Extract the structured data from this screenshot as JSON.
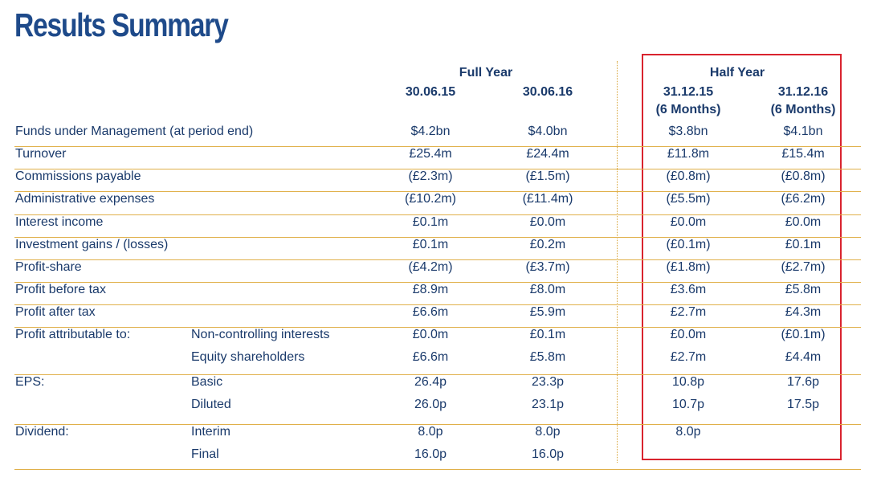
{
  "title": "Results Summary",
  "headers": {
    "full_year": "Full Year",
    "half_year": "Half Year",
    "fy_col1": "30.06.15",
    "fy_col2": "30.06.16",
    "hy_col1": "31.12.15",
    "hy_col2": "31.12.16",
    "hy_col1_sub": "(6 Months)",
    "hy_col2_sub": "(6 Months)"
  },
  "rows": [
    {
      "label": "Funds under Management (at period end)",
      "sub": "",
      "v": [
        "$4.2bn",
        "$4.0bn",
        "$3.8bn",
        "$4.1bn"
      ]
    },
    {
      "label": "Turnover",
      "sub": "",
      "v": [
        "£25.4m",
        "£24.4m",
        "£11.8m",
        "£15.4m"
      ]
    },
    {
      "label": "Commissions payable",
      "sub": "",
      "v": [
        "(£2.3m)",
        "(£1.5m)",
        "(£0.8m)",
        "(£0.8m)"
      ]
    },
    {
      "label": "Administrative expenses",
      "sub": "",
      "v": [
        "(£10.2m)",
        "(£11.4m)",
        "(£5.5m)",
        "(£6.2m)"
      ]
    },
    {
      "label": "Interest income",
      "sub": "",
      "v": [
        "£0.1m",
        "£0.0m",
        "£0.0m",
        "£0.0m"
      ]
    },
    {
      "label": "Investment gains / (losses)",
      "sub": "",
      "v": [
        "£0.1m",
        "£0.2m",
        "(£0.1m)",
        "£0.1m"
      ]
    },
    {
      "label": "Profit-share",
      "sub": "",
      "v": [
        "(£4.2m)",
        "(£3.7m)",
        "(£1.8m)",
        "(£2.7m)"
      ]
    },
    {
      "label": "Profit before tax",
      "sub": "",
      "v": [
        "£8.9m",
        "£8.0m",
        "£3.6m",
        "£5.8m"
      ]
    },
    {
      "label": "Profit after tax",
      "sub": "",
      "v": [
        "£6.6m",
        "£5.9m",
        "£2.7m",
        "£4.3m"
      ]
    },
    {
      "label": "Profit attributable to:",
      "sub": "Non-controlling interests",
      "v": [
        "£0.0m",
        "£0.1m",
        "£0.0m",
        "(£0.1m)"
      ]
    },
    {
      "label": "",
      "sub": "Equity shareholders",
      "v": [
        "£6.6m",
        "£5.8m",
        "£2.7m",
        "£4.4m"
      ]
    },
    {
      "label": "EPS:",
      "sub": "Basic",
      "v": [
        "26.4p",
        "23.3p",
        "10.8p",
        "17.6p"
      ]
    },
    {
      "label": "",
      "sub": "Diluted",
      "v": [
        "26.0p",
        "23.1p",
        "10.7p",
        "17.5p"
      ]
    },
    {
      "label": "Dividend:",
      "sub": "Interim",
      "v": [
        "8.0p",
        "8.0p",
        "8.0p",
        ""
      ]
    },
    {
      "label": "",
      "sub": "Final",
      "v": [
        "16.0p",
        "16.0p",
        "",
        ""
      ]
    }
  ]
}
